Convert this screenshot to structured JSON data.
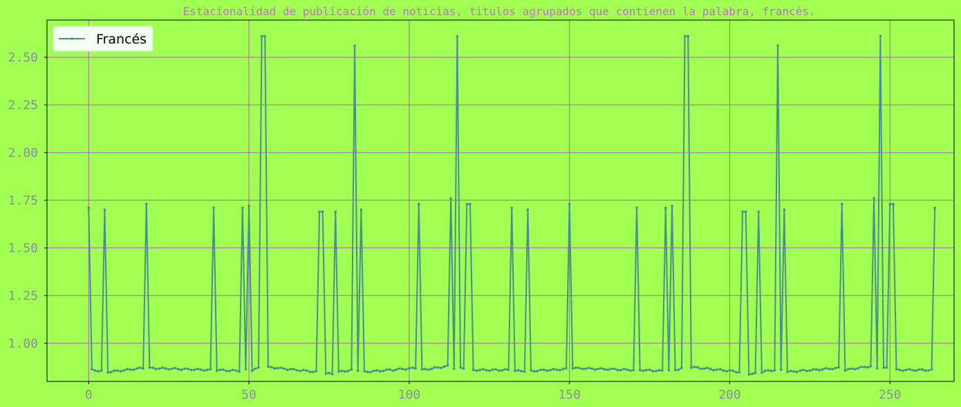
{
  "chart_data": {
    "type": "line",
    "title": "Estacionalidad de publicación de noticias, titulos agrupados que contienen la palabra, francés.",
    "xlabel": "",
    "ylabel": "",
    "xlim": [
      -13,
      270
    ],
    "ylim": [
      0.8,
      2.695
    ],
    "xticks": [
      0,
      50,
      100,
      150,
      200,
      250
    ],
    "yticks": [
      1.0,
      1.25,
      1.5,
      1.75,
      2.0,
      2.25,
      2.5
    ],
    "grid": true,
    "legend_position": "upper left",
    "series": [
      {
        "name": "Francés",
        "color": "#4a8f8f",
        "spikes": [
          [
            0,
            1.71
          ],
          [
            5,
            1.7
          ],
          [
            18,
            1.73
          ],
          [
            39,
            1.71
          ],
          [
            48,
            1.71
          ],
          [
            50,
            1.72
          ],
          [
            54,
            2.61
          ],
          [
            55,
            2.61
          ],
          [
            72,
            1.69
          ],
          [
            73,
            1.69
          ],
          [
            77,
            1.69
          ],
          [
            83,
            2.56
          ],
          [
            85,
            1.7
          ],
          [
            103,
            1.73
          ],
          [
            113,
            1.76
          ],
          [
            115,
            2.61
          ],
          [
            118,
            1.73
          ],
          [
            119,
            1.73
          ],
          [
            132,
            1.71
          ],
          [
            137,
            1.7
          ],
          [
            150,
            1.73
          ],
          [
            171,
            1.71
          ],
          [
            180,
            1.71
          ],
          [
            182,
            1.72
          ],
          [
            186,
            2.61
          ],
          [
            187,
            2.61
          ],
          [
            204,
            1.69
          ],
          [
            205,
            1.69
          ],
          [
            209,
            1.69
          ],
          [
            215,
            2.56
          ],
          [
            217,
            1.7
          ],
          [
            235,
            1.73
          ],
          [
            245,
            1.76
          ],
          [
            247,
            2.61
          ],
          [
            250,
            1.73
          ],
          [
            251,
            1.73
          ],
          [
            264,
            1.71
          ]
        ],
        "baseline_segments": [
          [
            1,
            4,
            0.86,
            0.855
          ],
          [
            6,
            17,
            0.85,
            0.87
          ],
          [
            19,
            38,
            0.87,
            0.86
          ],
          [
            40,
            47,
            0.86,
            0.855
          ],
          [
            49,
            49,
            0.86,
            0.86
          ],
          [
            51,
            53,
            0.86,
            0.87
          ],
          [
            56,
            71,
            0.875,
            0.85
          ],
          [
            74,
            76,
            0.84,
            0.84
          ],
          [
            78,
            82,
            0.85,
            0.86
          ],
          [
            84,
            84,
            0.86,
            0.86
          ],
          [
            86,
            102,
            0.85,
            0.87
          ],
          [
            104,
            112,
            0.86,
            0.88
          ],
          [
            114,
            114,
            0.87,
            0.87
          ],
          [
            116,
            117,
            0.87,
            0.87
          ],
          [
            120,
            131,
            0.86,
            0.86
          ],
          [
            133,
            136,
            0.855,
            0.855
          ],
          [
            138,
            149,
            0.855,
            0.865
          ],
          [
            151,
            170,
            0.87,
            0.86
          ],
          [
            172,
            179,
            0.86,
            0.855
          ],
          [
            181,
            181,
            0.86,
            0.86
          ],
          [
            183,
            185,
            0.86,
            0.87
          ],
          [
            188,
            203,
            0.875,
            0.85
          ],
          [
            206,
            208,
            0.84,
            0.84
          ],
          [
            210,
            214,
            0.85,
            0.86
          ],
          [
            216,
            216,
            0.86,
            0.86
          ],
          [
            218,
            234,
            0.85,
            0.87
          ],
          [
            236,
            244,
            0.86,
            0.88
          ],
          [
            246,
            246,
            0.87,
            0.87
          ],
          [
            248,
            249,
            0.87,
            0.87
          ],
          [
            252,
            263,
            0.86,
            0.86
          ]
        ]
      }
    ]
  },
  "colors": {
    "background": "#a0ff50",
    "grid": "#b05cc8",
    "title": "#c86bd0",
    "ticks": "#8a8fa0",
    "axes": "#000000",
    "legend_bg": "#f2fff0"
  }
}
